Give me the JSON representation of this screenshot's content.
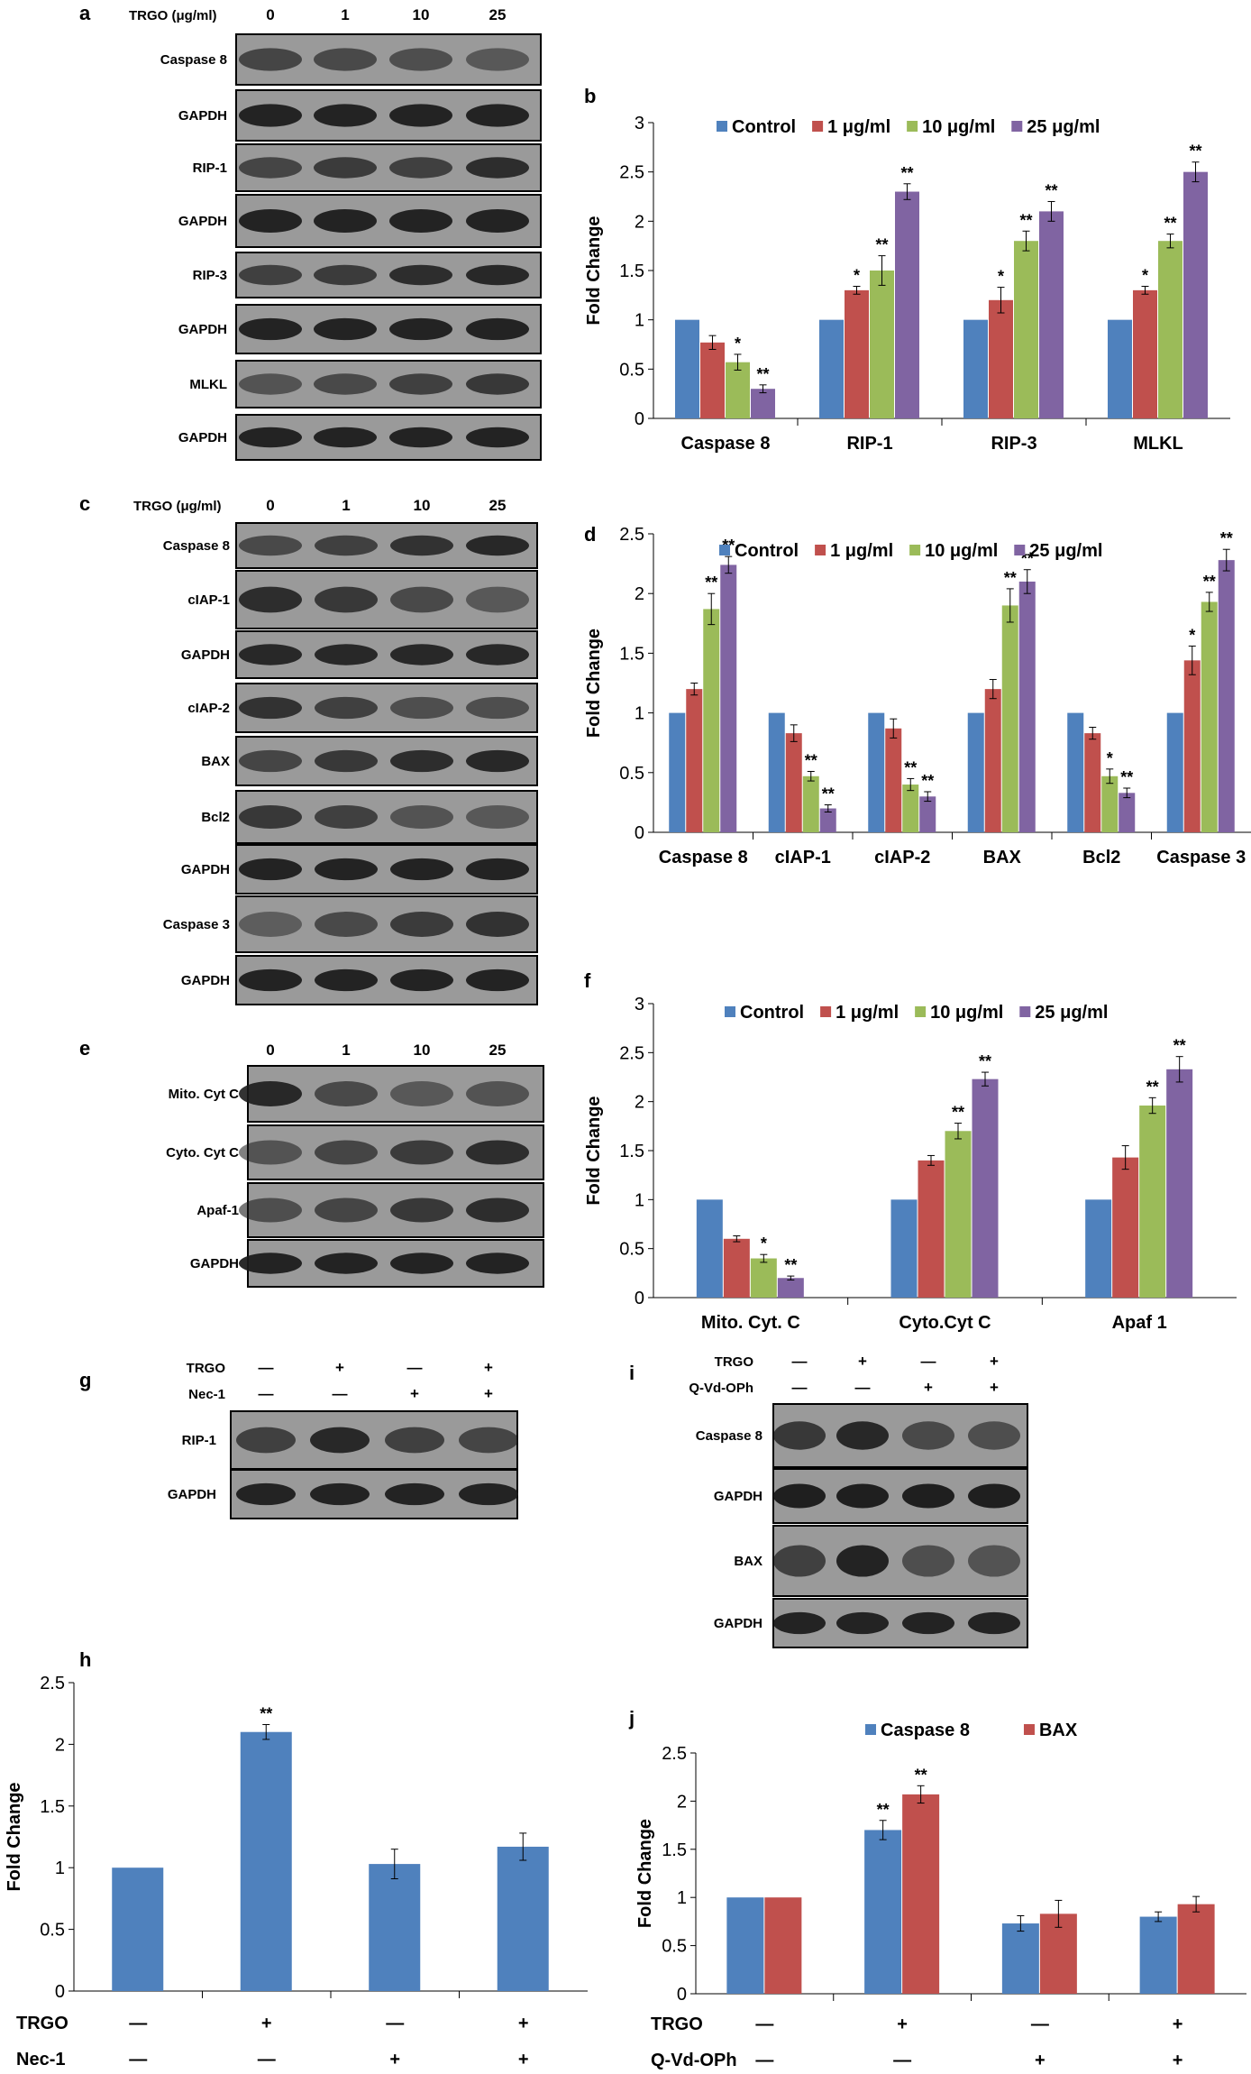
{
  "figure": {
    "panels": {
      "a": "a",
      "b": "b",
      "c": "c",
      "d": "d",
      "e": "e",
      "f": "f",
      "g": "g",
      "h": "h",
      "i": "i",
      "j": "j"
    }
  },
  "blots": {
    "a": {
      "header": "TRGO (μg/ml)",
      "columns": [
        "0",
        "1",
        "10",
        "25"
      ],
      "rows": [
        {
          "label": "Caspase 8",
          "intensity": [
            0.55,
            0.5,
            0.45,
            0.35
          ]
        },
        {
          "label": "GAPDH",
          "intensity": [
            0.9,
            0.9,
            0.9,
            0.9
          ]
        },
        {
          "label": "RIP-1",
          "intensity": [
            0.55,
            0.65,
            0.6,
            0.8
          ]
        },
        {
          "label": "GAPDH",
          "intensity": [
            0.9,
            0.9,
            0.9,
            0.9
          ]
        },
        {
          "label": "RIP-3",
          "intensity": [
            0.6,
            0.65,
            0.8,
            0.85
          ]
        },
        {
          "label": "GAPDH",
          "intensity": [
            0.9,
            0.9,
            0.9,
            0.9
          ]
        },
        {
          "label": "MLKL",
          "intensity": [
            0.4,
            0.5,
            0.6,
            0.7
          ]
        },
        {
          "label": "GAPDH",
          "intensity": [
            0.9,
            0.9,
            0.9,
            0.9
          ]
        }
      ]
    },
    "c": {
      "header": "TRGO (μg/ml)",
      "columns": [
        "0",
        "1",
        "10",
        "25"
      ],
      "rows": [
        {
          "label": "Caspase 8",
          "intensity": [
            0.5,
            0.6,
            0.75,
            0.85
          ]
        },
        {
          "label": "cIAP-1",
          "intensity": [
            0.8,
            0.7,
            0.5,
            0.35
          ]
        },
        {
          "label": "GAPDH",
          "intensity": [
            0.85,
            0.85,
            0.85,
            0.85
          ]
        },
        {
          "label": "cIAP-2",
          "intensity": [
            0.75,
            0.6,
            0.45,
            0.45
          ]
        },
        {
          "label": "BAX",
          "intensity": [
            0.55,
            0.7,
            0.8,
            0.85
          ]
        },
        {
          "label": "Bcl2",
          "intensity": [
            0.7,
            0.6,
            0.4,
            0.35
          ]
        },
        {
          "label": "GAPDH",
          "intensity": [
            0.9,
            0.9,
            0.9,
            0.9
          ]
        },
        {
          "label": "Caspase 3",
          "intensity": [
            0.3,
            0.5,
            0.65,
            0.75
          ]
        },
        {
          "label": "GAPDH",
          "intensity": [
            0.9,
            0.9,
            0.9,
            0.9
          ]
        }
      ]
    },
    "e": {
      "header": "",
      "columns": [
        "0",
        "1",
        "10",
        "25"
      ],
      "rows": [
        {
          "label": "Mito. Cyt C",
          "intensity": [
            0.85,
            0.5,
            0.35,
            0.4
          ]
        },
        {
          "label": "Cyto. Cyt C",
          "intensity": [
            0.4,
            0.55,
            0.65,
            0.8
          ]
        },
        {
          "label": "Apaf-1",
          "intensity": [
            0.45,
            0.55,
            0.7,
            0.8
          ]
        },
        {
          "label": "GAPDH",
          "intensity": [
            0.9,
            0.9,
            0.9,
            0.9
          ]
        }
      ]
    },
    "g": {
      "treatments": [
        {
          "name": "TRGO",
          "signs": [
            "—",
            "+",
            "—",
            "+"
          ]
        },
        {
          "name": "Nec-1",
          "signs": [
            "—",
            "—",
            "+",
            "+"
          ]
        }
      ],
      "rows": [
        {
          "label": "RIP-1",
          "intensity": [
            0.6,
            0.85,
            0.6,
            0.55
          ]
        },
        {
          "label": "GAPDH",
          "intensity": [
            0.9,
            0.9,
            0.9,
            0.9
          ]
        }
      ]
    },
    "i": {
      "treatments": [
        {
          "name": "TRGO",
          "signs": [
            "—",
            "+",
            "—",
            "+"
          ]
        },
        {
          "name": "Q-Vd-OPh",
          "signs": [
            "—",
            "—",
            "+",
            "+"
          ]
        }
      ],
      "rows": [
        {
          "label": "Caspase 8",
          "intensity": [
            0.7,
            0.85,
            0.5,
            0.45
          ]
        },
        {
          "label": "GAPDH",
          "intensity": [
            0.95,
            0.95,
            0.95,
            0.95
          ]
        },
        {
          "label": "BAX",
          "intensity": [
            0.6,
            0.9,
            0.45,
            0.4
          ]
        },
        {
          "label": "GAPDH",
          "intensity": [
            0.9,
            0.9,
            0.9,
            0.9
          ]
        }
      ]
    }
  },
  "colors": {
    "control": "#4f81bd",
    "c1": "#c0504d",
    "c10": "#9bbb59",
    "c25": "#8064a2",
    "blot_bg": "#9a9a9a",
    "band": "#1a1a1a"
  },
  "chart_data": [
    {
      "id": "b",
      "type": "bar",
      "ylabel": "Fold Change",
      "ylim": [
        0,
        3
      ],
      "yticks": [
        "0",
        "0.5",
        "1",
        "1.5",
        "2",
        "2.5",
        "3"
      ],
      "categories": [
        "Caspase 8",
        "RIP-1",
        "RIP-3",
        "MLKL"
      ],
      "series": [
        {
          "name": "Control",
          "color": "#4f81bd",
          "values": [
            1,
            1,
            1,
            1
          ],
          "err": [
            0,
            0,
            0,
            0
          ],
          "sig": [
            "",
            "",
            "",
            ""
          ]
        },
        {
          "name": "1 μg/ml",
          "color": "#c0504d",
          "values": [
            0.77,
            1.3,
            1.2,
            1.3
          ],
          "err": [
            0.07,
            0.04,
            0.13,
            0.04
          ],
          "sig": [
            "",
            "*",
            "*",
            "*"
          ]
        },
        {
          "name": "10 μg/ml",
          "color": "#9bbb59",
          "values": [
            0.57,
            1.5,
            1.8,
            1.8
          ],
          "err": [
            0.08,
            0.15,
            0.1,
            0.07
          ],
          "sig": [
            "*",
            "**",
            "**",
            "**"
          ]
        },
        {
          "name": "25 μg/ml",
          "color": "#8064a2",
          "values": [
            0.3,
            2.3,
            2.1,
            2.5
          ],
          "err": [
            0.04,
            0.08,
            0.1,
            0.1
          ],
          "sig": [
            "**",
            "**",
            "**",
            "**"
          ]
        }
      ]
    },
    {
      "id": "d",
      "type": "bar",
      "ylabel": "Fold Change",
      "ylim": [
        0,
        2.5
      ],
      "yticks": [
        "0",
        "0.5",
        "1",
        "1.5",
        "2",
        "2.5"
      ],
      "categories": [
        "Caspase 8",
        "cIAP-1",
        "cIAP-2",
        "BAX",
        "Bcl2",
        "Caspase 3"
      ],
      "series": [
        {
          "name": "Control",
          "color": "#4f81bd",
          "values": [
            1,
            1,
            1,
            1,
            1,
            1
          ],
          "err": [
            0,
            0,
            0,
            0,
            0,
            0
          ],
          "sig": [
            "",
            "",
            "",
            "",
            "",
            ""
          ]
        },
        {
          "name": "1 μg/ml",
          "color": "#c0504d",
          "values": [
            1.2,
            0.83,
            0.87,
            1.2,
            0.83,
            1.44
          ],
          "err": [
            0.05,
            0.07,
            0.08,
            0.08,
            0.05,
            0.12
          ],
          "sig": [
            "",
            "",
            "",
            "",
            "",
            "*"
          ]
        },
        {
          "name": "10 μg/ml",
          "color": "#9bbb59",
          "values": [
            1.87,
            0.47,
            0.4,
            1.9,
            0.47,
            1.93
          ],
          "err": [
            0.13,
            0.04,
            0.05,
            0.14,
            0.06,
            0.08
          ],
          "sig": [
            "**",
            "**",
            "**",
            "**",
            "*",
            "**"
          ]
        },
        {
          "name": "25 μg/ml",
          "color": "#8064a2",
          "values": [
            2.24,
            0.2,
            0.3,
            2.1,
            0.33,
            2.28
          ],
          "err": [
            0.07,
            0.03,
            0.04,
            0.1,
            0.04,
            0.09
          ],
          "sig": [
            "**",
            "**",
            "**",
            "**",
            "**",
            "**"
          ]
        }
      ]
    },
    {
      "id": "f",
      "type": "bar",
      "ylabel": "Fold Change",
      "ylim": [
        0,
        3
      ],
      "yticks": [
        "0",
        "0.5",
        "1",
        "1.5",
        "2",
        "2.5",
        "3"
      ],
      "categories": [
        "Mito. Cyt. C",
        "Cyto.Cyt C",
        "Apaf 1"
      ],
      "series": [
        {
          "name": "Control",
          "color": "#4f81bd",
          "values": [
            1,
            1,
            1
          ],
          "err": [
            0,
            0,
            0
          ],
          "sig": [
            "",
            "",
            ""
          ]
        },
        {
          "name": "1 μg/ml",
          "color": "#c0504d",
          "values": [
            0.6,
            1.4,
            1.43
          ],
          "err": [
            0.03,
            0.05,
            0.12
          ],
          "sig": [
            "",
            "",
            ""
          ]
        },
        {
          "name": "10 μg/ml",
          "color": "#9bbb59",
          "values": [
            0.4,
            1.7,
            1.96
          ],
          "err": [
            0.04,
            0.08,
            0.08
          ],
          "sig": [
            "*",
            "**",
            "**"
          ]
        },
        {
          "name": "25 μg/ml",
          "color": "#8064a2",
          "values": [
            0.2,
            2.23,
            2.33
          ],
          "err": [
            0.02,
            0.07,
            0.13
          ],
          "sig": [
            "**",
            "**",
            "**"
          ]
        }
      ]
    },
    {
      "id": "h",
      "type": "bar",
      "ylabel": "Fold Change",
      "ylim": [
        0,
        2.5
      ],
      "yticks": [
        "0",
        "0.5",
        "1",
        "1.5",
        "2",
        "2.5"
      ],
      "treatments": [
        {
          "name": "TRGO",
          "signs": [
            "—",
            "+",
            "—",
            "+"
          ]
        },
        {
          "name": "Nec-1",
          "signs": [
            "—",
            "—",
            "+",
            "+"
          ]
        }
      ],
      "series": [
        {
          "name": "",
          "color": "#4f81bd",
          "values": [
            1,
            2.1,
            1.03,
            1.17
          ],
          "err": [
            0,
            0.06,
            0.12,
            0.11
          ],
          "sig": [
            "",
            "**",
            "",
            ""
          ]
        }
      ]
    },
    {
      "id": "j",
      "type": "bar",
      "ylabel": "Fold Change",
      "ylim": [
        0,
        2.5
      ],
      "yticks": [
        "0",
        "0.5",
        "1",
        "1.5",
        "2",
        "2.5"
      ],
      "treatments": [
        {
          "name": "TRGO",
          "signs": [
            "—",
            "+",
            "—",
            "+"
          ]
        },
        {
          "name": "Q-Vd-OPh",
          "signs": [
            "—",
            "—",
            "+",
            "+"
          ]
        }
      ],
      "series": [
        {
          "name": "Caspase 8",
          "color": "#4f81bd",
          "values": [
            1,
            1.7,
            0.73,
            0.8
          ],
          "err": [
            0,
            0.1,
            0.08,
            0.05
          ],
          "sig": [
            "",
            "**",
            "",
            ""
          ]
        },
        {
          "name": "BAX",
          "color": "#c0504d",
          "values": [
            1,
            2.07,
            0.83,
            0.93
          ],
          "err": [
            0,
            0.09,
            0.14,
            0.08
          ],
          "sig": [
            "",
            "**",
            "",
            ""
          ]
        }
      ]
    }
  ]
}
